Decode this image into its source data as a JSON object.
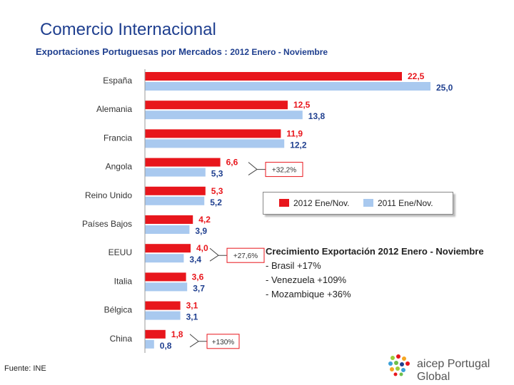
{
  "header": {
    "title": "Comercio Internacional",
    "subtitle": "Exportaciones Portuguesas por Mercados :",
    "period": "2012 Enero - Noviembre"
  },
  "chart_data": {
    "type": "bar",
    "orientation": "horizontal",
    "categories": [
      "España",
      "Alemania",
      "Francia",
      "Angola",
      "Reino Unido",
      "Países Bajos",
      "EEUU",
      "Italia",
      "Bélgica",
      "China"
    ],
    "series": [
      {
        "name": "2012 Ene/Nov.",
        "color": "#e8161c",
        "values": [
          22.5,
          12.5,
          11.9,
          6.6,
          5.3,
          4.2,
          4.0,
          3.6,
          3.1,
          1.8
        ],
        "labels": [
          "22,5",
          "12,5",
          "11,9",
          "6,6",
          "5,3",
          "4,2",
          "4,0",
          "3,6",
          "3,1",
          "1,8"
        ]
      },
      {
        "name": "2011 Ene/Nov.",
        "color": "#a9c9ef",
        "values": [
          25.0,
          13.8,
          12.2,
          5.3,
          5.2,
          3.9,
          3.4,
          3.7,
          3.1,
          0.8
        ],
        "labels": [
          "25,0",
          "13,8",
          "12,2",
          "5,3",
          "5,2",
          "3,9",
          "3,4",
          "3,7",
          "3,1",
          "0,8"
        ]
      }
    ],
    "annotations": [
      {
        "category": "Angola",
        "text": "+32,2%"
      },
      {
        "category": "EEUU",
        "text": "+27,6%"
      },
      {
        "category": "China",
        "text": "+130%"
      }
    ],
    "legend_position": "right",
    "grid": false
  },
  "notes": {
    "heading": "Crecimiento Exportación 2012 Enero - Noviembre",
    "items": [
      "- Brasil +17%",
      "- Venezuela +109%",
      "- Mozambique +36%"
    ]
  },
  "source": "Fuente: INE",
  "logo": {
    "text": "aicep Portugal Global"
  }
}
